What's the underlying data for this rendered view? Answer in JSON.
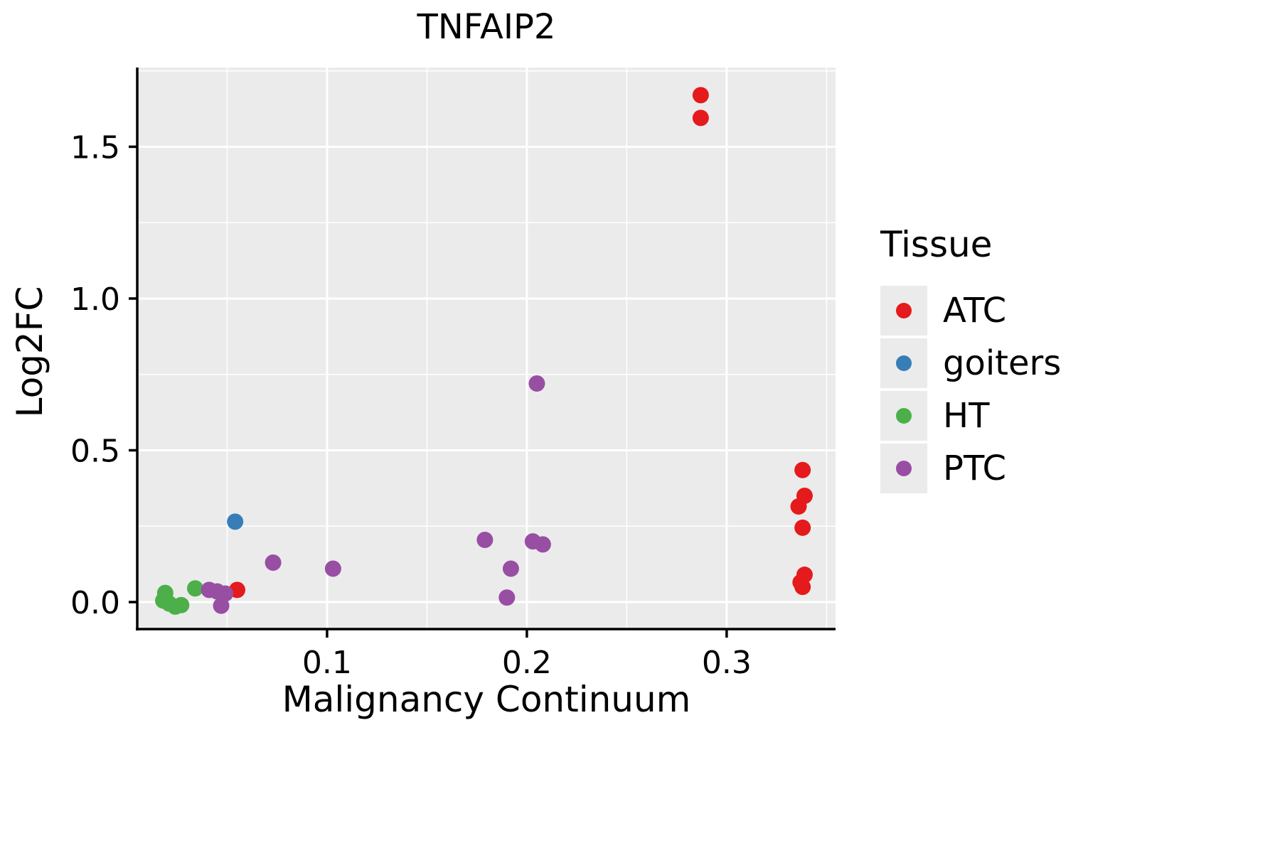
{
  "chart_data": {
    "type": "scatter",
    "title": "TNFAIP2",
    "xlabel": "Malignancy Continuum",
    "ylabel": "Log2FC",
    "legend_title": "Tissue",
    "legend_position": "right",
    "grid": true,
    "panel_bg": "#EBEBEB",
    "grid_color": "#FFFFFF",
    "axis_color": "#000000",
    "xlim": [
      0.005,
      0.3545
    ],
    "ylim": [
      -0.089,
      1.761
    ],
    "xticks": [
      0.1,
      0.2,
      0.3
    ],
    "yticks": [
      0.0,
      0.5,
      1.0,
      1.5
    ],
    "xticks_minor": [
      0.05,
      0.15,
      0.25,
      0.35
    ],
    "yticks_minor": [
      0.25,
      0.75,
      1.25,
      1.75
    ],
    "series": [
      {
        "name": "ATC",
        "color": "#E41A1C",
        "points": [
          [
            0.287,
            1.67
          ],
          [
            0.287,
            1.595
          ],
          [
            0.055,
            0.04
          ],
          [
            0.338,
            0.435
          ],
          [
            0.339,
            0.35
          ],
          [
            0.336,
            0.315
          ],
          [
            0.338,
            0.245
          ],
          [
            0.339,
            0.09
          ],
          [
            0.337,
            0.065
          ],
          [
            0.338,
            0.05
          ]
        ]
      },
      {
        "name": "goiters",
        "color": "#377EB8",
        "points": [
          [
            0.054,
            0.265
          ]
        ]
      },
      {
        "name": "HT",
        "color": "#4DAF4A",
        "points": [
          [
            0.019,
            0.03
          ],
          [
            0.018,
            0.005
          ],
          [
            0.021,
            -0.005
          ],
          [
            0.024,
            -0.015
          ],
          [
            0.027,
            -0.01
          ],
          [
            0.034,
            0.045
          ]
        ]
      },
      {
        "name": "PTC",
        "color": "#984EA3",
        "points": [
          [
            0.041,
            0.04
          ],
          [
            0.045,
            0.035
          ],
          [
            0.049,
            0.028
          ],
          [
            0.047,
            -0.012
          ],
          [
            0.073,
            0.13
          ],
          [
            0.103,
            0.11
          ],
          [
            0.179,
            0.205
          ],
          [
            0.205,
            0.72
          ],
          [
            0.203,
            0.2
          ],
          [
            0.208,
            0.19
          ],
          [
            0.192,
            0.11
          ],
          [
            0.19,
            0.015
          ]
        ]
      }
    ]
  }
}
